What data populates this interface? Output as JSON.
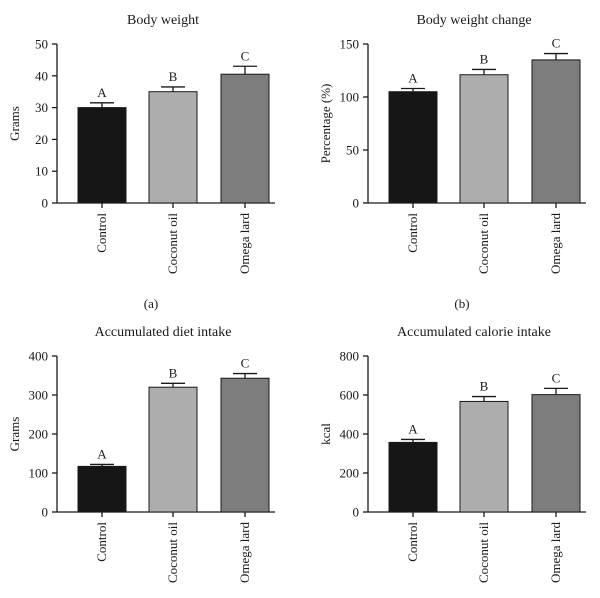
{
  "chart_data": [
    {
      "type": "bar",
      "title": "Body weight",
      "ylabel": "Grams",
      "panel_label": "(a)",
      "categories": [
        "Control",
        "Coconut oil",
        "Omega lard"
      ],
      "values": [
        30,
        35,
        40.5
      ],
      "errors": [
        1.5,
        1.5,
        2.5
      ],
      "significance": [
        "A",
        "B",
        "C"
      ],
      "ylim": [
        0,
        50
      ],
      "yticks": [
        0,
        10,
        20,
        30,
        40,
        50
      ],
      "colors": [
        "#161616",
        "#adadad",
        "#7d7d7d"
      ]
    },
    {
      "type": "bar",
      "title": "Body weight change",
      "ylabel": "Percentage (%)",
      "panel_label": "(b)",
      "categories": [
        "Control",
        "Coconut oil",
        "Omega lard"
      ],
      "values": [
        105,
        121,
        135
      ],
      "errors": [
        3,
        5,
        6
      ],
      "significance": [
        "A",
        "B",
        "C"
      ],
      "ylim": [
        0,
        150
      ],
      "yticks": [
        0,
        50,
        100,
        150
      ],
      "colors": [
        "#161616",
        "#adadad",
        "#7d7d7d"
      ]
    },
    {
      "type": "bar",
      "title": "Accumulated diet intake",
      "ylabel": "Grams",
      "categories": [
        "Control",
        "Coconut oil",
        "Omega lard"
      ],
      "values": [
        117,
        320,
        343
      ],
      "errors": [
        5,
        10,
        12
      ],
      "significance": [
        "A",
        "B",
        "C"
      ],
      "ylim": [
        0,
        400
      ],
      "yticks": [
        0,
        100,
        200,
        300,
        400
      ],
      "colors": [
        "#161616",
        "#adadad",
        "#7d7d7d"
      ]
    },
    {
      "type": "bar",
      "title": "Accumulated calorie intake",
      "ylabel": "kcal",
      "categories": [
        "Control",
        "Coconut oil",
        "Omega lard"
      ],
      "values": [
        357,
        567,
        602
      ],
      "errors": [
        15,
        25,
        32
      ],
      "significance": [
        "A",
        "B",
        "C"
      ],
      "ylim": [
        0,
        800
      ],
      "yticks": [
        0,
        200,
        400,
        600,
        800
      ],
      "colors": [
        "#161616",
        "#adadad",
        "#7d7d7d"
      ]
    }
  ]
}
